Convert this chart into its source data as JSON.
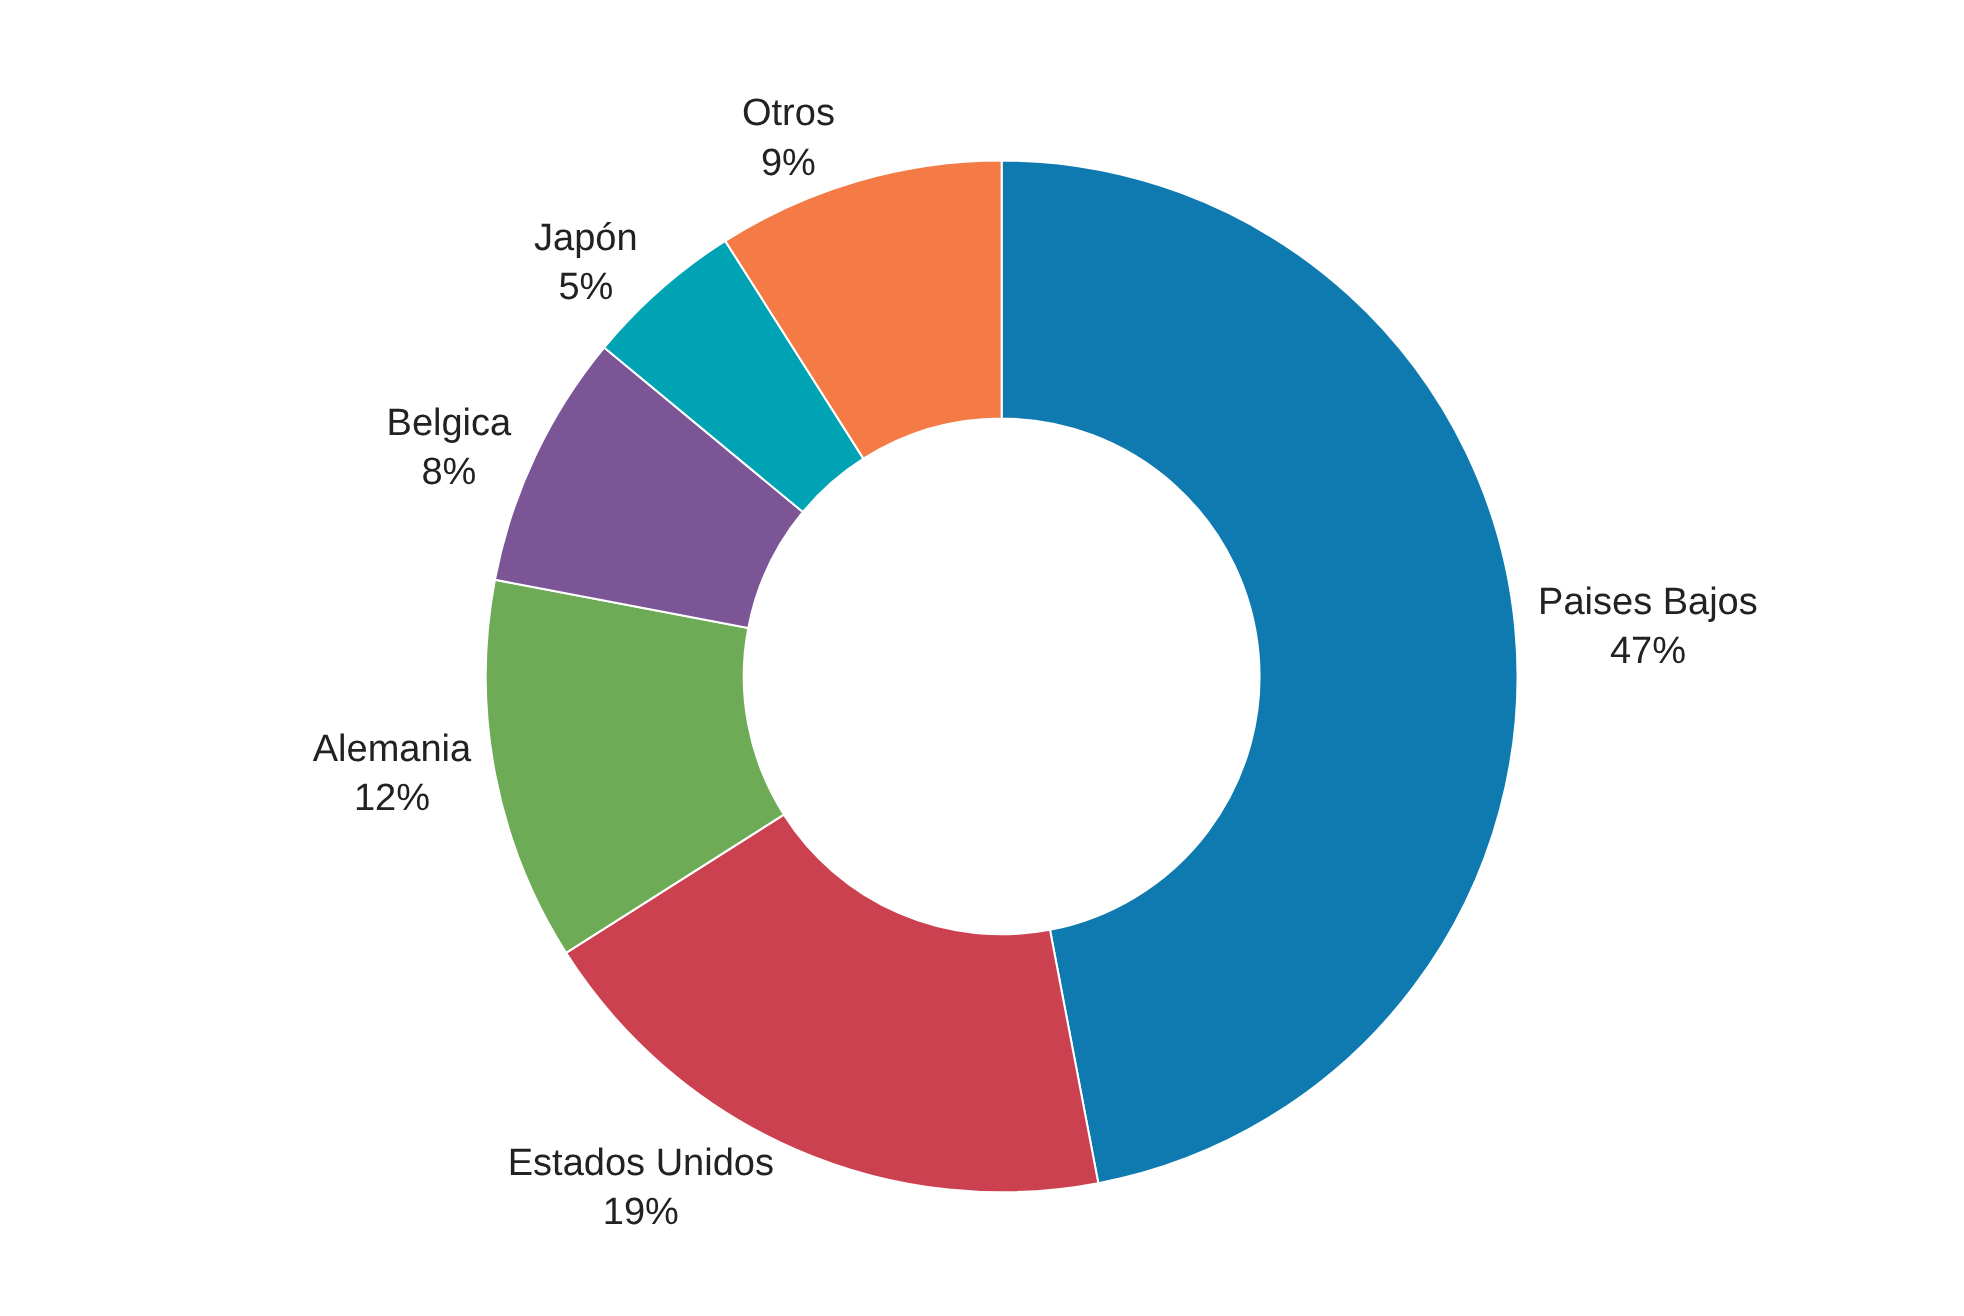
{
  "chart_data": {
    "type": "donut",
    "categories": [
      "Paises Bajos",
      "Estados Unidos",
      "Alemania",
      "Belgica",
      "Japón",
      "Otros"
    ],
    "values": [
      47,
      19,
      12,
      8,
      5,
      9
    ],
    "value_labels": [
      "47%",
      "19%",
      "12%",
      "8%",
      "5%",
      "9%"
    ],
    "colors": [
      "#0e7ab0",
      "#cc4150",
      "#6eab57",
      "#7c5597",
      "#00a3b3",
      "#f47b45"
    ],
    "legend": false
  }
}
